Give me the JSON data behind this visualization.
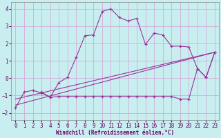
{
  "xlabel": "Windchill (Refroidissement éolien,°C)",
  "background_color": "#c8eef0",
  "grid_color": "#d4a0d4",
  "line_color": "#993399",
  "xlim": [
    -0.5,
    23.5
  ],
  "ylim": [
    -2.4,
    4.4
  ],
  "xticks": [
    0,
    1,
    2,
    3,
    4,
    5,
    6,
    7,
    8,
    9,
    10,
    11,
    12,
    13,
    14,
    15,
    16,
    17,
    18,
    19,
    20,
    21,
    22,
    23
  ],
  "yticks": [
    -2,
    -1,
    0,
    1,
    2,
    3,
    4
  ],
  "line1_x": [
    0,
    1,
    2,
    3,
    4,
    5,
    6,
    7,
    8,
    9,
    10,
    11,
    12,
    13,
    14,
    15,
    16,
    17,
    18,
    19,
    20,
    21,
    22,
    23
  ],
  "line1_y": [
    -1.7,
    -0.8,
    -0.7,
    -0.85,
    -1.1,
    -0.25,
    0.05,
    1.2,
    2.45,
    2.5,
    3.85,
    4.0,
    3.5,
    3.3,
    3.45,
    1.95,
    2.6,
    2.5,
    1.85,
    1.85,
    1.8,
    0.55,
    0.05,
    1.5
  ],
  "line2_x": [
    3,
    4,
    5,
    6,
    7,
    8,
    9,
    10,
    11,
    12,
    13,
    14,
    15,
    16,
    17,
    18,
    19,
    20,
    21,
    22,
    23
  ],
  "line2_y": [
    -0.8,
    -1.1,
    -1.05,
    -1.05,
    -1.05,
    -1.05,
    -1.05,
    -1.05,
    -1.05,
    -1.05,
    -1.05,
    -1.05,
    -1.05,
    -1.05,
    -1.05,
    -1.05,
    -1.2,
    -1.2,
    0.55,
    0.05,
    1.5
  ],
  "line3_x": [
    0,
    23
  ],
  "line3_y": [
    -1.55,
    1.5
  ],
  "line4_x": [
    0,
    23
  ],
  "line4_y": [
    -1.2,
    1.5
  ],
  "label_fontsize": 5.5,
  "tick_fontsize": 5.5,
  "xlabel_fontsize": 5.5
}
